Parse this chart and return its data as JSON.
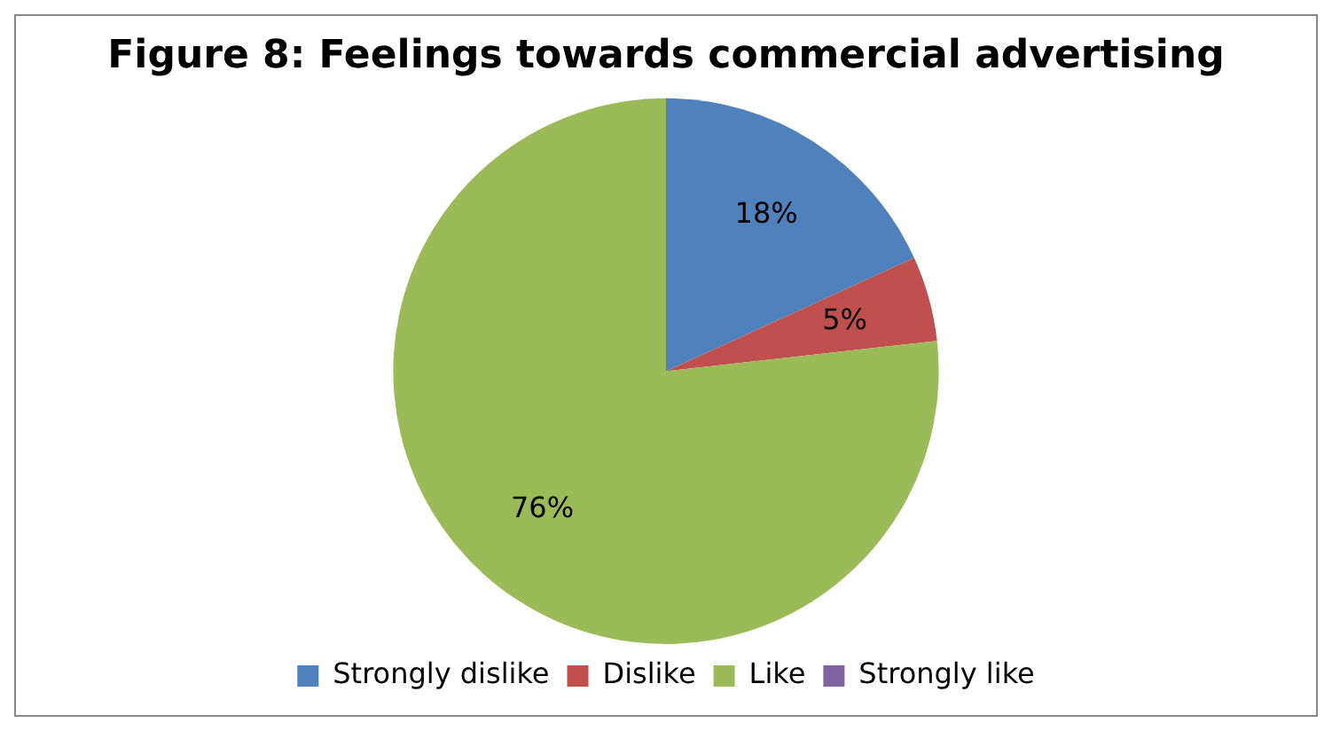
{
  "chart_data": {
    "type": "pie",
    "title": "Figure 8: Feelings towards commercial advertising",
    "categories": [
      "Strongly dislike",
      "Dislike",
      "Like",
      "Strongly like"
    ],
    "values": [
      18,
      5,
      76,
      0
    ],
    "colors": [
      "#4f81bd",
      "#c0504d",
      "#9bbb59",
      "#8064a2"
    ],
    "value_labels": [
      "18%",
      "5%",
      "76%",
      null
    ],
    "legend": "bottom"
  }
}
